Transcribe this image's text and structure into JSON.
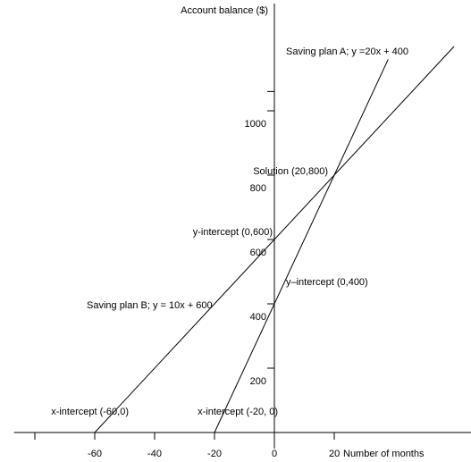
{
  "chart_data": {
    "type": "line",
    "title": "",
    "xlabel": "Number of months",
    "ylabel": "Account balance ($)",
    "xlim": [
      -78,
      62
    ],
    "ylim": [
      0,
      1280
    ],
    "x_ticks": [
      -60,
      -40,
      -20,
      0,
      20
    ],
    "x_tick_labels": [
      "-60",
      "-40",
      "-20",
      "0",
      "20"
    ],
    "y_ticks": [
      200,
      400,
      600,
      800,
      1000
    ],
    "y_tick_labels": [
      "200",
      "400",
      "600",
      "800",
      "1000"
    ],
    "grid": false,
    "legend": "none",
    "series": [
      {
        "name": "Saving plan A; y =20x + 400",
        "slope": 20,
        "intercept": 400,
        "x": [
          -20,
          38
        ],
        "color": "#000000"
      },
      {
        "name": "Saving plan B; y =  10x + 600",
        "slope": 10,
        "intercept": 600,
        "x": [
          -60,
          60
        ],
        "color": "#000000"
      }
    ],
    "annotations": [
      {
        "text": "Solution (20,800)",
        "x": 20,
        "y": 800
      },
      {
        "text": "y-intercept (0,600)",
        "x": 0,
        "y": 600
      },
      {
        "text": "y–intercept (0,400)",
        "x": 0,
        "y": 400
      },
      {
        "text": "x-intercept (-60,0)",
        "x": -60,
        "y": 0
      },
      {
        "text": "x-intercept (-20, 0)",
        "x": -20,
        "y": 0
      }
    ]
  }
}
